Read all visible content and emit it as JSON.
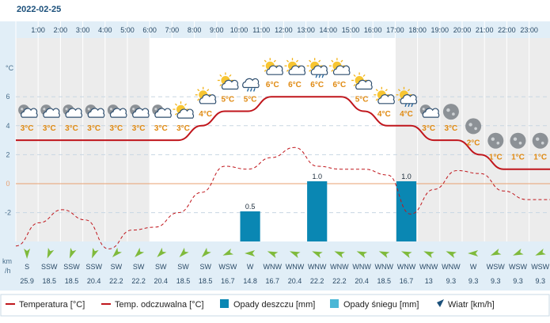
{
  "date_label": "2022-02-25",
  "y_axis_unit": "°C",
  "wind_axis_unit": [
    "km",
    "/h"
  ],
  "legend": {
    "temperature": "Temperatura [°C]",
    "feels_like": "Temp. odczuwalna [°C]",
    "rain": "Opady deszczu [mm]",
    "snow": "Opady śniegu [mm]",
    "wind": "Wiatr [km/h]"
  },
  "colors": {
    "temperature": "#c0161c",
    "feels_like": "#c0161c",
    "rain": "#0a87b3",
    "snow": "#4bb7d6",
    "wind_arrow": "#7fba3c",
    "zero_line": "#e8a070",
    "night_band": "#ececec",
    "day_band": "#ffffff"
  },
  "chart_data": {
    "type": "line",
    "hours": [
      "1:00",
      "2:00",
      "3:00",
      "4:00",
      "5:00",
      "6:00",
      "7:00",
      "8:00",
      "9:00",
      "10:00",
      "11:00",
      "12:00",
      "13:00",
      "14:00",
      "15:00",
      "16:00",
      "17:00",
      "18:00",
      "19:00",
      "20:00",
      "21:00",
      "22:00",
      "23:00"
    ],
    "y_ticks": [
      6,
      4,
      2,
      0,
      -2
    ],
    "ylim": [
      -4.5,
      8.5
    ],
    "temperature": [
      3,
      3,
      3,
      3,
      3,
      3,
      3,
      3,
      4,
      5,
      5,
      6,
      6,
      6,
      6,
      5,
      4,
      4,
      3,
      3,
      2,
      1,
      1,
      1
    ],
    "temperature_labels": [
      "3°C",
      "3°C",
      "3°C",
      "3°C",
      "3°C",
      "3°C",
      "3°C",
      "3°C",
      "4°C",
      "5°C",
      "5°C",
      "6°C",
      "6°C",
      "6°C",
      "6°C",
      "5°C",
      "4°C",
      "4°C",
      "3°C",
      "3°C",
      "2°C",
      "1°C",
      "1°C",
      "1°C"
    ],
    "feels_like": [
      -4.3,
      -2.7,
      -1.8,
      -2.5,
      -4.5,
      -3.2,
      -3.0,
      -2.0,
      -0.6,
      1.2,
      1.0,
      1.8,
      2.5,
      1.2,
      1.0,
      1.0,
      0.6,
      -2.1,
      -0.4,
      0.9,
      0.7,
      -0.5,
      -1.1,
      -1.1
    ],
    "rain": [
      {
        "hour": "11:00",
        "value": 0.5,
        "label": "0.5"
      },
      {
        "hour": "14:00",
        "value": 1.0,
        "label": "1.0"
      },
      {
        "hour": "18:00",
        "value": 1.0,
        "label": "1.0"
      }
    ],
    "wind_dirs": [
      "S",
      "SSW",
      "SSW",
      "SSW",
      "SW",
      "SW",
      "SW",
      "SW",
      "SW",
      "WSW",
      "W",
      "WNW",
      "WNW",
      "WNW",
      "WNW",
      "WNW",
      "WNW",
      "WNW",
      "WNW",
      "WNW",
      "W",
      "WSW",
      "WSW",
      "WSW"
    ],
    "wind_speeds": [
      "25.9",
      "18.5",
      "18.5",
      "20.4",
      "22.2",
      "22.2",
      "20.4",
      "18.5",
      "18.5",
      "16.7",
      "14.8",
      "16.7",
      "20.4",
      "22.2",
      "22.2",
      "20.4",
      "18.5",
      "16.7",
      "13",
      "9.3",
      "9.3",
      "9.3",
      "9.3",
      "9.3"
    ],
    "icons": [
      "moon-cloud-icon",
      "moon-cloud-icon",
      "moon-cloud-icon",
      "moon-cloud-icon",
      "moon-cloud-icon",
      "moon-cloud-icon",
      "moon-cloud-icon",
      "sun-cloud-icon",
      "sun-cloud-icon",
      "sun-cloud-icon",
      "rain-cloud-icon",
      "sun-cloud-icon",
      "sun-cloud-icon",
      "sun-rain-cloud-icon",
      "sun-cloud-icon",
      "sun-cloud-icon",
      "sun-cloud-icon",
      "sun-rain-cloud-icon",
      "moon-cloud-icon",
      "moon-icon",
      "moon-icon",
      "moon-icon",
      "moon-icon",
      "moon-icon"
    ],
    "night_columns": [
      0,
      1,
      2,
      3,
      4,
      5,
      17,
      18,
      19,
      20,
      21,
      22,
      23
    ]
  }
}
